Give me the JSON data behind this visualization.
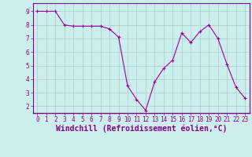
{
  "x": [
    0,
    1,
    2,
    3,
    4,
    5,
    6,
    7,
    8,
    9,
    10,
    11,
    12,
    13,
    14,
    15,
    16,
    17,
    18,
    19,
    20,
    21,
    22,
    23
  ],
  "y": [
    9.0,
    9.0,
    9.0,
    8.0,
    7.9,
    7.9,
    7.9,
    7.9,
    7.7,
    7.1,
    3.5,
    2.5,
    1.7,
    3.8,
    4.8,
    5.4,
    7.4,
    6.7,
    7.5,
    8.0,
    7.0,
    5.1,
    3.4,
    2.6
  ],
  "line_color": "#990099",
  "marker": "+",
  "marker_size": 3,
  "line_width": 0.8,
  "xlabel": "Windchill (Refroidissement éolien,°C)",
  "xlim": [
    -0.5,
    23.5
  ],
  "ylim": [
    1.5,
    9.6
  ],
  "yticks": [
    2,
    3,
    4,
    5,
    6,
    7,
    8,
    9
  ],
  "xticks": [
    0,
    1,
    2,
    3,
    4,
    5,
    6,
    7,
    8,
    9,
    10,
    11,
    12,
    13,
    14,
    15,
    16,
    17,
    18,
    19,
    20,
    21,
    22,
    23
  ],
  "bg_color": "#cceeed",
  "grid_color": "#aacccc",
  "font_color": "#880088",
  "tick_font_size": 5.5,
  "label_font_size": 7.0
}
